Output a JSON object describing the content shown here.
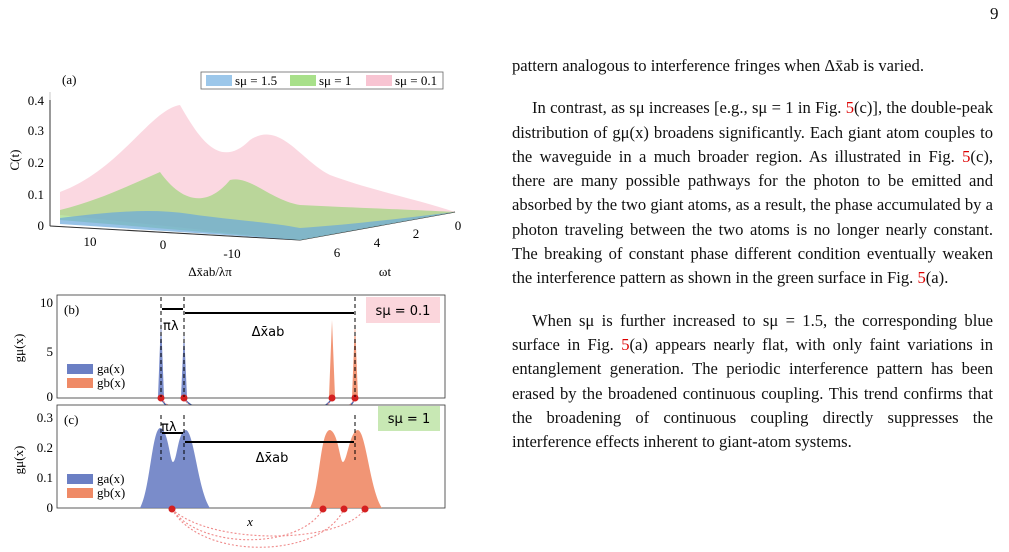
{
  "page_number": "9",
  "figure": {
    "a": {
      "label": "(a)",
      "legend": [
        "sμ = 1.5",
        "sμ = 1",
        "sμ = 0.1"
      ],
      "y_label": "C(t)",
      "y_ticks": [
        "0",
        "0.1",
        "0.2",
        "0.3",
        "0.4"
      ],
      "x_label": "Δx̄ab/λπ",
      "x_ticks": [
        "10",
        "0",
        "-10"
      ],
      "t_label": "ωt",
      "t_ticks": [
        "0",
        "2",
        "4",
        "6"
      ]
    },
    "b": {
      "label": "(b)",
      "y_label": "gμ(x)",
      "y_ticks": [
        "10",
        "5",
        "0"
      ],
      "legend": [
        "ga(x)",
        "gb(x)"
      ],
      "spacing": "πλ",
      "distance": "Δx̄ab",
      "tag": "sμ = 0.1"
    },
    "c": {
      "label": "(c)",
      "y_label": "gμ(x)",
      "y_ticks": [
        "0.3",
        "0.2",
        "0.1",
        "0"
      ],
      "legend": [
        "ga(x)",
        "gb(x)"
      ],
      "spacing": "πλ",
      "distance": "Δx̄ab",
      "tag": "sμ = 1",
      "x_label": "x"
    }
  },
  "paragraphs": [
    [
      {
        "text": "pattern analogous to interference fringes when Δx̄ab is varied."
      }
    ],
    [
      {
        "text": "In contrast, as sμ increases [e.g., sμ = 1 in Fig. "
      },
      {
        "text": "5",
        "ref": true
      },
      {
        "text": "(c)], the double-peak distribution of gμ(x) broadens significantly. Each giant atom couples to the waveguide in a much broader region. As illustrated in Fig. "
      },
      {
        "text": "5",
        "ref": true
      },
      {
        "text": "(c), there are many possible pathways for the photon to be emitted and absorbed by the two giant atoms, as a result, the phase accumulated by a photon traveling between the two atoms is no longer nearly constant. The breaking of constant phase different condition eventually weaken the interference pattern as shown in the green surface in Fig. "
      },
      {
        "text": "5",
        "ref": true
      },
      {
        "text": "(a)."
      }
    ],
    [
      {
        "text": "When sμ is further increased to sμ = 1.5, the corresponding blue surface in Fig. "
      },
      {
        "text": "5",
        "ref": true
      },
      {
        "text": "(a) appears nearly flat, with only faint variations in entanglement generation. The periodic interference pattern has been erased by the broadened continuous coupling. This trend confirms that the broadening of continuous coupling directly suppresses the interference effects inherent to giant-atom systems."
      }
    ]
  ]
}
